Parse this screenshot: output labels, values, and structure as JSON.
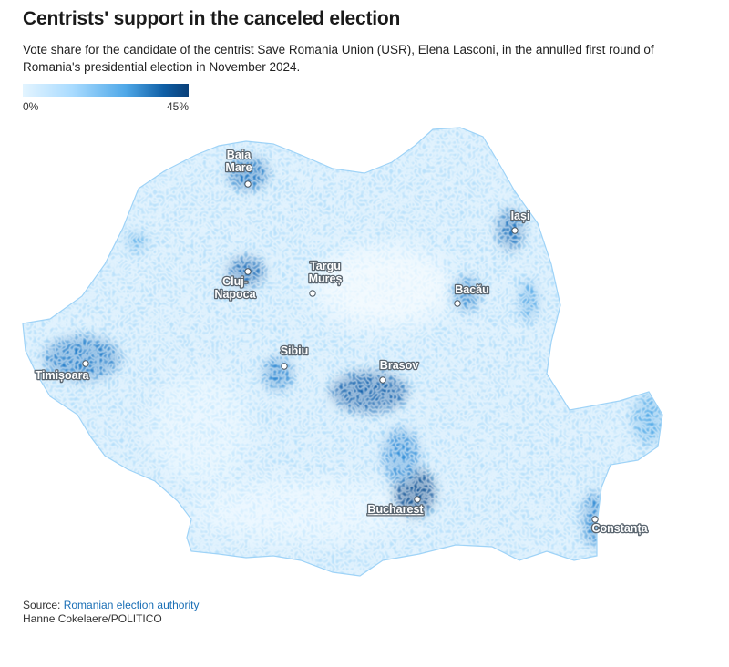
{
  "header": {
    "title": "Centrists' support in the canceled election",
    "subtitle": "Vote share for the candidate of the centrist Save Romania Union (USR), Elena Lasconi, in the annulled first round of Romania's presidential election in November 2024."
  },
  "legend": {
    "min_label": "0%",
    "max_label": "45%",
    "min_value": 0,
    "max_value": 45,
    "colors": [
      "#e3f4ff",
      "#a9dbff",
      "#4fa8e8",
      "#0f5fa6",
      "#0a3f78"
    ]
  },
  "map": {
    "region": "Romania",
    "base_color": "#b7e0fb",
    "cities": [
      {
        "name": "Baia Mare",
        "lines": [
          "Baia",
          "Mare"
        ],
        "level": "high"
      },
      {
        "name": "Iasi",
        "lines": [
          "Iași"
        ],
        "level": "high"
      },
      {
        "name": "Cluj-Napoca",
        "lines": [
          "Cluj-",
          "Napoca"
        ],
        "level": "high"
      },
      {
        "name": "Targu Mures",
        "lines": [
          "Targu",
          "Mureș"
        ],
        "level": "low"
      },
      {
        "name": "Bacau",
        "lines": [
          "Bacău"
        ],
        "level": "high"
      },
      {
        "name": "Timisoara",
        "lines": [
          "Timișoara"
        ],
        "level": "high"
      },
      {
        "name": "Sibiu",
        "lines": [
          "Sibiu"
        ],
        "level": "high"
      },
      {
        "name": "Brasov",
        "lines": [
          "Brasov"
        ],
        "level": "high"
      },
      {
        "name": "Bucharest",
        "lines": [
          "Bucharest"
        ],
        "level": "high"
      },
      {
        "name": "Constanta",
        "lines": [
          "Constanța"
        ],
        "level": "high"
      }
    ]
  },
  "footer": {
    "source_prefix": "Source: ",
    "source_link": "Romanian election authority",
    "credit": "Hanne Cokelaere/POLITICO"
  }
}
